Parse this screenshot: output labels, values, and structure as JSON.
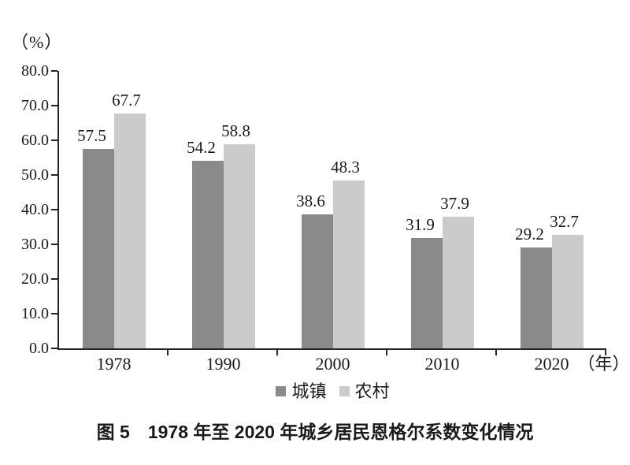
{
  "chart_data": {
    "type": "bar",
    "title": "",
    "y_unit_label": "（%）",
    "x_unit_label": "（年）",
    "categories": [
      "1978",
      "1990",
      "2000",
      "2010",
      "2020"
    ],
    "series": [
      {
        "name": "城镇",
        "key": "urban",
        "color": "#8a8a8a",
        "values": [
          57.5,
          54.2,
          38.6,
          31.9,
          29.2
        ]
      },
      {
        "name": "农村",
        "key": "rural",
        "color": "#cbcbcb",
        "values": [
          67.7,
          58.8,
          48.3,
          37.9,
          32.7
        ]
      }
    ],
    "ylim": [
      0,
      80
    ],
    "ytick_step": 10,
    "ytick_labels": [
      "0.0",
      "10.0",
      "20.0",
      "30.0",
      "40.0",
      "50.0",
      "60.0",
      "70.0",
      "80.0"
    ],
    "grid": false,
    "legend_position": "bottom",
    "axis_color": "#262626",
    "text_color": "#1a1a1a"
  },
  "caption": {
    "text": "图 5　1978 年至 2020 年城乡居民恩格尔系数变化情况"
  }
}
